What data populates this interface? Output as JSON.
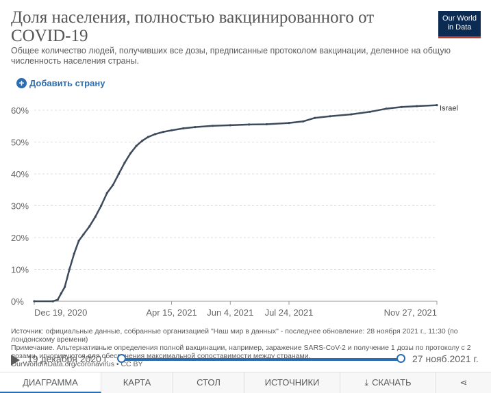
{
  "header": {
    "title": "Доля населения, полностью вакцинированного от COVID-19",
    "subtitle": "Общее количество людей, получивших все дозы, предписанные протоколом вакцинации, деленное на общую численность населения страны.",
    "logo_line1": "Our World",
    "logo_line2": "in Data",
    "logo_colors": {
      "background": "#0b2b52",
      "accent": "#c0392b"
    }
  },
  "controls": {
    "add_country_label": "Добавить страну",
    "add_icon": "plus-circle-icon"
  },
  "chart_data": {
    "type": "line",
    "title": "",
    "xlabel": "",
    "ylabel": "",
    "x_ticks": [
      "Dec 19, 2020",
      "Apr 15, 2021",
      "Jun 4, 2021",
      "Jul 24, 2021",
      "Nov 27, 2021"
    ],
    "y_ticks": [
      "0%",
      "10%",
      "20%",
      "30%",
      "40%",
      "50%",
      "60%"
    ],
    "ylim": [
      0,
      62
    ],
    "xlim": [
      "2020-12-19",
      "2021-11-27"
    ],
    "grid": "horizontal dashed",
    "line_color": "#3d4a5c",
    "series": [
      {
        "name": "Israel",
        "points": [
          [
            "2020-12-19",
            0
          ],
          [
            "2021-01-04",
            0
          ],
          [
            "2021-01-08",
            0.5
          ],
          [
            "2021-01-11",
            2.5
          ],
          [
            "2021-01-14",
            4.5
          ],
          [
            "2021-01-18",
            10
          ],
          [
            "2021-01-22",
            15
          ],
          [
            "2021-01-26",
            19
          ],
          [
            "2021-01-30",
            21
          ],
          [
            "2021-02-04",
            23.5
          ],
          [
            "2021-02-09",
            26.5
          ],
          [
            "2021-02-14",
            30
          ],
          [
            "2021-02-19",
            34
          ],
          [
            "2021-02-24",
            36.5
          ],
          [
            "2021-03-01",
            40
          ],
          [
            "2021-03-06",
            43.5
          ],
          [
            "2021-03-11",
            46.5
          ],
          [
            "2021-03-16",
            48.8
          ],
          [
            "2021-03-21",
            50.4
          ],
          [
            "2021-03-26",
            51.6
          ],
          [
            "2021-04-01",
            52.5
          ],
          [
            "2021-04-08",
            53.2
          ],
          [
            "2021-04-15",
            53.7
          ],
          [
            "2021-04-25",
            54.3
          ],
          [
            "2021-05-05",
            54.7
          ],
          [
            "2021-05-20",
            55.1
          ],
          [
            "2021-06-04",
            55.3
          ],
          [
            "2021-06-20",
            55.5
          ],
          [
            "2021-07-05",
            55.6
          ],
          [
            "2021-07-24",
            56.0
          ],
          [
            "2021-08-05",
            56.5
          ],
          [
            "2021-08-15",
            57.6
          ],
          [
            "2021-08-28",
            58.1
          ],
          [
            "2021-09-15",
            58.7
          ],
          [
            "2021-10-01",
            59.5
          ],
          [
            "2021-10-15",
            60.5
          ],
          [
            "2021-10-28",
            61.0
          ],
          [
            "2021-11-10",
            61.3
          ],
          [
            "2021-11-27",
            61.6
          ]
        ]
      }
    ]
  },
  "notes": {
    "source": "Источник: официальные данные, собранные организацией \"Наш мир в данных\" - последнее обновление: 28 ноября 2021 г., 11:30 (по лондонскому времени)",
    "note": "Примечание. Альтернативные определения полной вакцинации, например, заражение SARS-CoV-2 и получение 1 дозы по протоколу с 2 дозами, игнорируются для обеспечения максимальной сопоставимости между странами.",
    "url": "OurWorldInData.org/coronavirus • CC BY"
  },
  "timeline": {
    "start_label": "19 декабря 2020 г.",
    "end_label": "27 нояб.2021 г.",
    "play_icon": "play-icon"
  },
  "tabs": [
    {
      "label": "ДИАГРАММА",
      "active": true
    },
    {
      "label": "КАРТА",
      "active": false
    },
    {
      "label": "СТОЛ",
      "active": false
    },
    {
      "label": "ИСТОЧНИКИ",
      "active": false
    },
    {
      "label": "СКАЧАТЬ",
      "active": false,
      "icon": "download-icon"
    },
    {
      "label": "",
      "active": false,
      "icon": "share-icon"
    }
  ]
}
